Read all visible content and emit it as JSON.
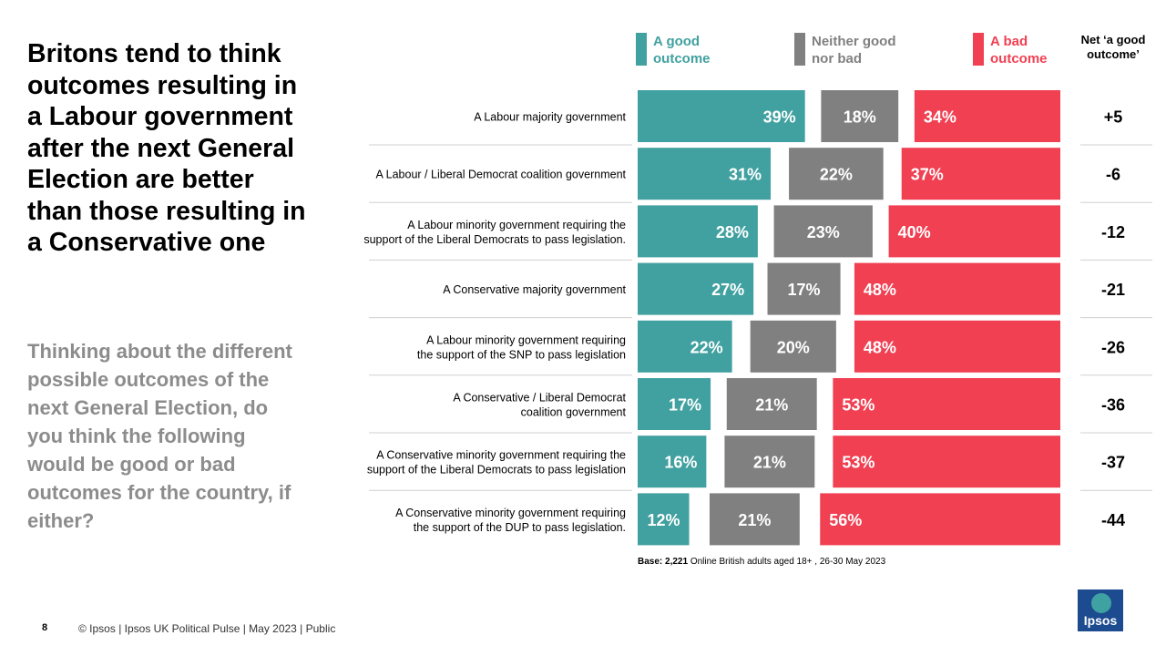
{
  "title": "Britons tend to think outcomes resulting in a Labour government after the next General Election are better than those resulting in a Conservative one",
  "subtitle": "Thinking about the different possible outcomes of the next General Election, do you think the following would be good or bad outcomes for the country, if either?",
  "footer": "© Ipsos  |  Ipsos UK Political Pulse | May 2023 | Public",
  "page_number": "8",
  "logo_text": "Ipsos",
  "colors": {
    "good": "#41a0a0",
    "neither": "#808080",
    "bad": "#f04052"
  },
  "chart_data": {
    "type": "bar",
    "stacked": "diverging",
    "value_unit": "%",
    "categories": [
      "A Labour majority government",
      "A Labour / Liberal Democrat coalition government",
      "A Labour minority government requiring the support of the Liberal Democrats to pass legislation.",
      "A Conservative majority government",
      "A Labour minority government requiring the support of the SNP to pass legislation",
      "A Conservative / Liberal Democrat coalition government",
      "A Conservative minority government requiring the support of the Liberal Democrats to pass legislation",
      "A Conservative minority government requiring the support of the DUP to pass legislation."
    ],
    "category_lines": [
      [
        "A Labour majority government"
      ],
      [
        "A Labour / Liberal Democrat coalition government"
      ],
      [
        "A Labour minority government requiring the",
        "support of the Liberal Democrats to pass legislation."
      ],
      [
        "A Conservative majority government"
      ],
      [
        "A Labour minority government requiring",
        "the support of the SNP to pass legislation"
      ],
      [
        "A Conservative / Liberal Democrat",
        "coalition government"
      ],
      [
        "A Conservative minority government requiring the",
        "support of the Liberal Democrats to pass legislation"
      ],
      [
        "A Conservative minority government requiring",
        "the support of the DUP to pass legislation."
      ]
    ],
    "series": [
      {
        "name": "A good outcome",
        "legend_lines": [
          "A good",
          "outcome"
        ],
        "color_key": "good",
        "values": [
          39,
          31,
          28,
          27,
          22,
          17,
          16,
          12
        ]
      },
      {
        "name": "Neither good nor bad",
        "legend_lines": [
          "Neither good",
          "nor bad"
        ],
        "color_key": "neither",
        "values": [
          18,
          22,
          23,
          17,
          20,
          21,
          21,
          21
        ]
      },
      {
        "name": "A bad outcome",
        "legend_lines": [
          "A bad",
          "outcome"
        ],
        "color_key": "bad",
        "values": [
          34,
          37,
          40,
          48,
          48,
          53,
          53,
          56
        ]
      }
    ],
    "net_header_lines": [
      "Net ‘a good",
      "outcome’"
    ],
    "net_values": [
      "+5",
      "-6",
      "-12",
      "-21",
      "-26",
      "-36",
      "-37",
      "-44"
    ],
    "base_label": "Base: 2,221",
    "base_note": " Online British adults aged 18+ , 26-30 May 2023"
  }
}
